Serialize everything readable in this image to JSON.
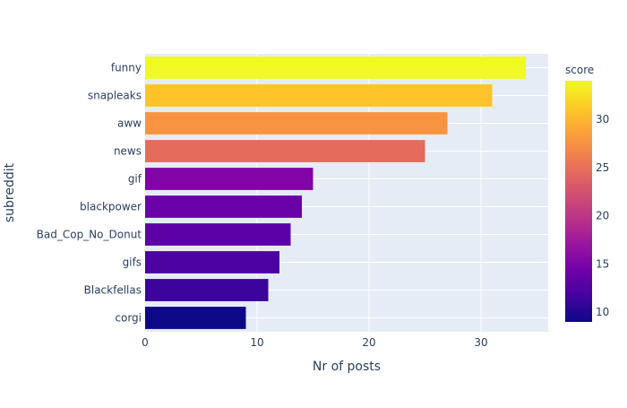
{
  "chart_data": {
    "type": "bar",
    "orientation": "horizontal",
    "xlabel": "Nr of posts",
    "ylabel": "subreddit",
    "xlim": [
      0,
      36
    ],
    "xticks": [
      0,
      10,
      20,
      30
    ],
    "grid": true,
    "categories": [
      "funny",
      "snapleaks",
      "aww",
      "news",
      "gif",
      "blackpower",
      "Bad_Cop_No_Donut",
      "gifs",
      "Blackfellas",
      "corgi"
    ],
    "values": [
      34,
      31,
      27,
      25,
      15,
      14,
      13,
      12,
      11,
      9
    ],
    "colors": [
      "#f0f921",
      "#fdc328",
      "#f89441",
      "#e56b5d",
      "#8104a7",
      "#6a00a8",
      "#5c01a6",
      "#4c02a1",
      "#3c049b",
      "#0d0887"
    ],
    "colorbar": {
      "title": "score",
      "range": [
        9,
        34
      ],
      "ticks": [
        10,
        15,
        20,
        25,
        30
      ]
    }
  }
}
